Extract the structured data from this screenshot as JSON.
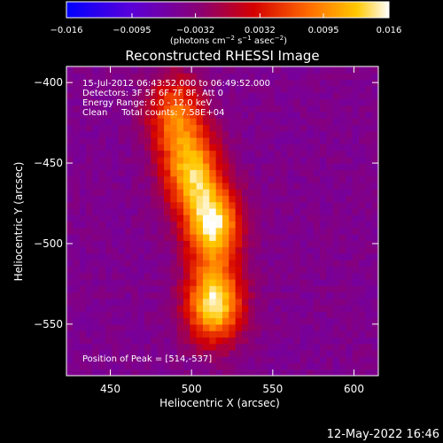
{
  "chart_data": {
    "type": "heatmap",
    "title": "Reconstructed RHESSI Image",
    "xlabel": "Heliocentric X (arcsec)",
    "ylabel": "Heliocentric Y (arcsec)",
    "xlim": [
      423,
      615
    ],
    "ylim": [
      -582,
      -390
    ],
    "x_ticks": [
      450,
      500,
      550,
      600
    ],
    "x_tick_labels": [
      "450",
      "500",
      "550",
      "600"
    ],
    "y_ticks": [
      -400,
      -450,
      -500,
      -550
    ],
    "y_tick_labels": [
      "−400",
      "−450",
      "−500",
      "−550"
    ],
    "colorbar": {
      "range": [
        -0.016,
        0.016
      ],
      "ticks": [
        -0.016,
        -0.0095,
        -0.0032,
        0.0032,
        0.0095,
        0.016
      ],
      "tick_labels": [
        "−0.016",
        "−0.0095",
        "−0.0032",
        "0.0032",
        "0.0095",
        "0.016"
      ],
      "unit_prefix": "(photons cm",
      "unit_exp1": "−2",
      "unit_mid": " s",
      "unit_exp2": "−1",
      "unit_mid2": " asec",
      "unit_exp3": "−2",
      "unit_suffix": ")"
    },
    "annotations": [
      "15-Jul-2012 06:43:52.000 to 06:49:52.000",
      "Detectors: 3F 5F 6F 7F 8F, Att 0",
      "Energy Range: 6.0 - 12.0 keV",
      "Clean     Total counts: 7.58E+04"
    ],
    "peak_label": "Position of Peak = [514,-537]",
    "peak": [
      514,
      -537
    ],
    "sources": [
      {
        "x": 514,
        "y": -537,
        "amplitude": 0.0155
      },
      {
        "x": 513,
        "y": -488,
        "amplitude": 0.0148
      },
      {
        "x": 500,
        "y": -455,
        "amplitude": 0.0115
      },
      {
        "x": 490,
        "y": -420,
        "amplitude": 0.008
      }
    ],
    "background_level": -0.0045,
    "grid": false
  },
  "footer_date": "12-May-2022 16:46"
}
